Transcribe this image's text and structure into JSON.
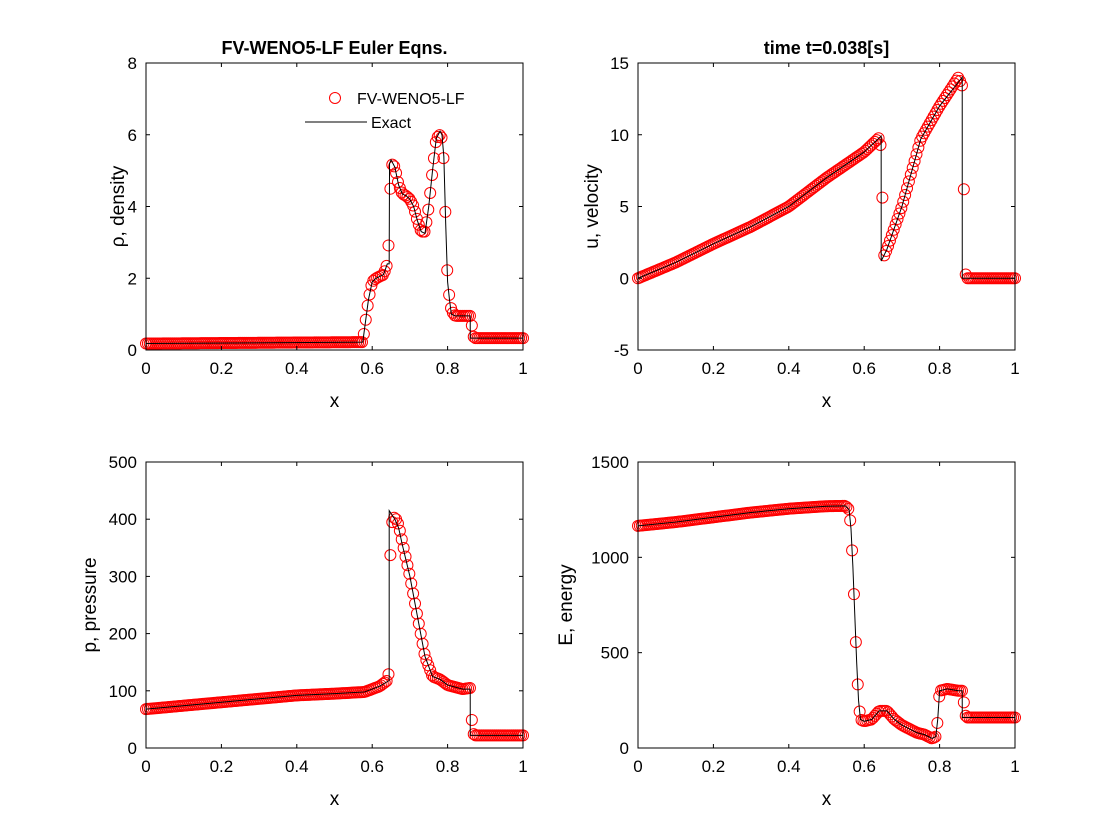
{
  "figure": {
    "background": "#ffffff",
    "numerical_color": "#ff0000",
    "exact_color": "#000000"
  },
  "chart_data": [
    {
      "id": "density",
      "type": "line",
      "title": "FV-WENO5-LF Euler Eqns.",
      "xlabel": "x",
      "ylabel": "ρ, density",
      "xlim": [
        0,
        1
      ],
      "ylim": [
        0,
        8
      ],
      "xticks": [
        0,
        0.2,
        0.4,
        0.6,
        0.8,
        1
      ],
      "yticks": [
        0,
        2,
        4,
        6,
        8
      ],
      "xtick_labels": [
        "0",
        "0.2",
        "0.4",
        "0.6",
        "0.8",
        "1"
      ],
      "ytick_labels": [
        "0",
        "2",
        "4",
        "6",
        "8"
      ],
      "grid": false,
      "legend": {
        "position": "top-right",
        "entries": [
          {
            "label": "FV-WENO5-LF",
            "marker": "circle-open",
            "color": "#ff0000"
          },
          {
            "label": "Exact",
            "marker": "line",
            "color": "#000000"
          }
        ]
      },
      "series": [
        {
          "name": "FV-WENO5-LF",
          "style": "markers",
          "color": "#ff0000",
          "x": [
            0,
            0.575,
            0.59,
            0.6,
            0.61,
            0.62,
            0.63,
            0.64,
            0.645,
            0.65,
            0.66,
            0.67,
            0.68,
            0.69,
            0.7,
            0.71,
            0.72,
            0.73,
            0.74,
            0.75,
            0.76,
            0.77,
            0.78,
            0.785,
            0.79,
            0.795,
            0.8,
            0.805,
            0.81,
            0.82,
            0.84,
            0.86,
            0.87,
            1
          ],
          "y": [
            0.18,
            0.22,
            1.4,
            1.9,
            2.0,
            2.05,
            2.1,
            2.4,
            3.2,
            5.2,
            5.1,
            4.6,
            4.35,
            4.3,
            4.2,
            4.0,
            3.6,
            3.3,
            3.3,
            4.0,
            5.0,
            5.9,
            6.0,
            5.9,
            5.2,
            3.5,
            1.9,
            1.45,
            1.1,
            0.95,
            0.95,
            0.95,
            0.33,
            0.33
          ]
        },
        {
          "name": "Exact",
          "style": "line",
          "color": "#000000",
          "x": [
            0,
            0.575,
            0.59,
            0.6,
            0.61,
            0.62,
            0.63,
            0.64,
            0.645,
            0.646,
            0.65,
            0.66,
            0.67,
            0.68,
            0.69,
            0.7,
            0.71,
            0.72,
            0.73,
            0.74,
            0.75,
            0.76,
            0.77,
            0.78,
            0.785,
            0.79,
            0.795,
            0.8,
            0.805,
            0.81,
            0.82,
            0.84,
            0.86,
            0.8601,
            0.87,
            1
          ],
          "y": [
            0.18,
            0.22,
            1.4,
            1.9,
            2.0,
            2.05,
            2.1,
            2.4,
            2.4,
            5.2,
            5.3,
            5.1,
            4.6,
            4.35,
            4.3,
            4.2,
            4.0,
            3.6,
            3.3,
            3.25,
            4.0,
            5.0,
            5.9,
            6.1,
            6.0,
            5.4,
            3.5,
            1.9,
            1.4,
            1.0,
            0.95,
            0.95,
            0.95,
            0.33,
            0.33,
            0.33
          ]
        }
      ]
    },
    {
      "id": "velocity",
      "type": "line",
      "title": "time t=0.038[s]",
      "xlabel": "x",
      "ylabel": "u, velocity",
      "xlim": [
        0,
        1
      ],
      "ylim": [
        -5,
        15
      ],
      "xticks": [
        0,
        0.2,
        0.4,
        0.6,
        0.8,
        1
      ],
      "yticks": [
        -5,
        0,
        5,
        10,
        15
      ],
      "xtick_labels": [
        "0",
        "0.2",
        "0.4",
        "0.6",
        "0.8",
        "1"
      ],
      "ytick_labels": [
        "-5",
        "0",
        "5",
        "10",
        "15"
      ],
      "grid": false,
      "series": [
        {
          "name": "FV-WENO5-LF",
          "style": "markers",
          "color": "#ff0000",
          "x": [
            0,
            0.1,
            0.2,
            0.3,
            0.4,
            0.5,
            0.6,
            0.64,
            0.645,
            0.648,
            0.65,
            0.66,
            0.7,
            0.75,
            0.8,
            0.85,
            0.86,
            0.862,
            0.865,
            0.868,
            0.87,
            0.9,
            1
          ],
          "y": [
            0,
            1.1,
            2.4,
            3.6,
            5.0,
            7.0,
            8.8,
            9.8,
            9.0,
            6.2,
            1.4,
            2.0,
            5.0,
            9.7,
            12.0,
            14.0,
            13.4,
            11.0,
            4.8,
            0.8,
            0.0,
            0.0,
            0.0
          ]
        },
        {
          "name": "Exact",
          "style": "line",
          "color": "#000000",
          "x": [
            0,
            0.1,
            0.2,
            0.3,
            0.4,
            0.5,
            0.6,
            0.645,
            0.6451,
            0.66,
            0.7,
            0.75,
            0.8,
            0.86,
            0.8601,
            1
          ],
          "y": [
            0,
            1.1,
            2.4,
            3.6,
            5.0,
            7.0,
            8.8,
            9.9,
            1.2,
            2.0,
            5.0,
            9.7,
            12.0,
            14.0,
            0.0,
            0.0
          ]
        }
      ]
    },
    {
      "id": "pressure",
      "type": "line",
      "title": "",
      "xlabel": "x",
      "ylabel": "p, pressure",
      "xlim": [
        0,
        1
      ],
      "ylim": [
        0,
        500
      ],
      "xticks": [
        0,
        0.2,
        0.4,
        0.6,
        0.8,
        1
      ],
      "yticks": [
        0,
        100,
        200,
        300,
        400,
        500
      ],
      "xtick_labels": [
        "0",
        "0.2",
        "0.4",
        "0.6",
        "0.8",
        "1"
      ],
      "ytick_labels": [
        "0",
        "100",
        "200",
        "300",
        "400",
        "500"
      ],
      "grid": false,
      "series": [
        {
          "name": "FV-WENO5-LF",
          "style": "markers",
          "color": "#ff0000",
          "x": [
            0,
            0.2,
            0.4,
            0.5,
            0.58,
            0.62,
            0.64,
            0.645,
            0.646,
            0.647,
            0.648,
            0.65,
            0.66,
            0.67,
            0.68,
            0.7,
            0.72,
            0.74,
            0.76,
            0.78,
            0.8,
            0.84,
            0.86,
            0.862,
            0.865,
            0.87,
            0.9,
            1
          ],
          "y": [
            68,
            80,
            92,
            95,
            98,
            108,
            118,
            135,
            205,
            260,
            330,
            390,
            405,
            390,
            360,
            300,
            230,
            160,
            125,
            120,
            110,
            103,
            105,
            80,
            40,
            22,
            22,
            22
          ]
        },
        {
          "name": "Exact",
          "style": "line",
          "color": "#000000",
          "x": [
            0,
            0.2,
            0.4,
            0.5,
            0.58,
            0.62,
            0.645,
            0.6451,
            0.66,
            0.67,
            0.68,
            0.7,
            0.72,
            0.74,
            0.76,
            0.78,
            0.8,
            0.84,
            0.86,
            0.8601,
            1
          ],
          "y": [
            68,
            80,
            92,
            95,
            98,
            108,
            118,
            415,
            400,
            385,
            355,
            300,
            230,
            160,
            125,
            120,
            110,
            103,
            103,
            22,
            22
          ]
        }
      ]
    },
    {
      "id": "energy",
      "type": "line",
      "title": "",
      "xlabel": "x",
      "ylabel": "E, energy",
      "xlim": [
        0,
        1
      ],
      "ylim": [
        0,
        1500
      ],
      "xticks": [
        0,
        0.2,
        0.4,
        0.6,
        0.8,
        1
      ],
      "yticks": [
        0,
        500,
        1000,
        1500
      ],
      "xtick_labels": [
        "0",
        "0.2",
        "0.4",
        "0.6",
        "0.8",
        "1"
      ],
      "ytick_labels": [
        "0",
        "500",
        "1000",
        "1500"
      ],
      "grid": false,
      "series": [
        {
          "name": "FV-WENO5-LF",
          "style": "markers",
          "color": "#ff0000",
          "x": [
            0,
            0.1,
            0.2,
            0.3,
            0.4,
            0.5,
            0.55,
            0.56,
            0.565,
            0.57,
            0.575,
            0.58,
            0.585,
            0.59,
            0.6,
            0.62,
            0.64,
            0.66,
            0.68,
            0.7,
            0.72,
            0.74,
            0.76,
            0.78,
            0.79,
            0.795,
            0.8,
            0.82,
            0.85,
            0.86,
            0.87,
            1
          ],
          "y": [
            1165,
            1185,
            1210,
            1235,
            1255,
            1268,
            1270,
            1250,
            1150,
            950,
            700,
            450,
            250,
            150,
            140,
            150,
            195,
            195,
            150,
            120,
            100,
            80,
            70,
            50,
            60,
            150,
            300,
            310,
            300,
            300,
            160,
            160
          ]
        },
        {
          "name": "Exact",
          "style": "line",
          "color": "#000000",
          "x": [
            0,
            0.1,
            0.2,
            0.3,
            0.4,
            0.5,
            0.55,
            0.56,
            0.565,
            0.57,
            0.575,
            0.58,
            0.585,
            0.59,
            0.6,
            0.62,
            0.64,
            0.66,
            0.68,
            0.7,
            0.72,
            0.74,
            0.76,
            0.78,
            0.79,
            0.795,
            0.8,
            0.82,
            0.85,
            0.86,
            0.8601,
            1
          ],
          "y": [
            1165,
            1185,
            1210,
            1235,
            1255,
            1268,
            1270,
            1250,
            1150,
            950,
            700,
            450,
            250,
            150,
            140,
            150,
            195,
            195,
            150,
            120,
            100,
            80,
            70,
            50,
            60,
            150,
            300,
            310,
            300,
            300,
            160,
            160
          ]
        }
      ]
    }
  ]
}
